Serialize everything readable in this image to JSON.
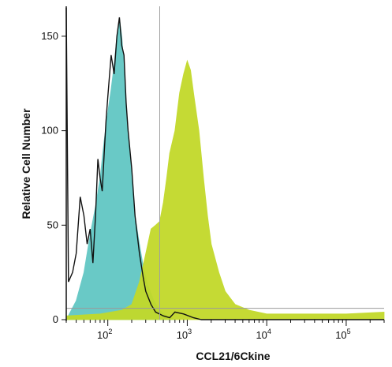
{
  "chart_data": {
    "type": "histogram",
    "xlabel": "CCL21/6Ckine",
    "ylabel": "Relative Cell Number",
    "x_scale": "log",
    "xlim": [
      30,
      300000
    ],
    "ylim": [
      0,
      165
    ],
    "y_ticks": [
      0,
      50,
      100,
      150
    ],
    "x_ticks": [
      100,
      1000,
      10000,
      100000
    ],
    "x_tick_labels": [
      {
        "base": "10",
        "exp": "2"
      },
      {
        "base": "10",
        "exp": "3"
      },
      {
        "base": "10",
        "exp": "4"
      },
      {
        "base": "10",
        "exp": "5"
      }
    ],
    "gate_x": 450,
    "grid": false,
    "legend": "none",
    "series": [
      {
        "style": "filled",
        "color": "#62c7c3",
        "points": [
          [
            30,
            0
          ],
          [
            40,
            10
          ],
          [
            50,
            25
          ],
          [
            60,
            45
          ],
          [
            70,
            60
          ],
          [
            80,
            75
          ],
          [
            90,
            95
          ],
          [
            100,
            110
          ],
          [
            110,
            122
          ],
          [
            120,
            135
          ],
          [
            130,
            150
          ],
          [
            140,
            160
          ],
          [
            150,
            150
          ],
          [
            160,
            135
          ],
          [
            170,
            115
          ],
          [
            180,
            100
          ],
          [
            200,
            75
          ],
          [
            220,
            55
          ],
          [
            250,
            40
          ],
          [
            280,
            28
          ],
          [
            320,
            18
          ],
          [
            380,
            10
          ],
          [
            450,
            5
          ],
          [
            550,
            2
          ],
          [
            700,
            0
          ]
        ]
      },
      {
        "style": "filled",
        "color": "#c2d92a",
        "points": [
          [
            30,
            2
          ],
          [
            80,
            3
          ],
          [
            150,
            5
          ],
          [
            200,
            8
          ],
          [
            250,
            20
          ],
          [
            300,
            35
          ],
          [
            350,
            48
          ],
          [
            400,
            50
          ],
          [
            450,
            52
          ],
          [
            500,
            62
          ],
          [
            550,
            75
          ],
          [
            600,
            88
          ],
          [
            700,
            100
          ],
          [
            800,
            120
          ],
          [
            900,
            130
          ],
          [
            1000,
            137
          ],
          [
            1100,
            132
          ],
          [
            1200,
            120
          ],
          [
            1400,
            100
          ],
          [
            1600,
            75
          ],
          [
            1800,
            55
          ],
          [
            2000,
            40
          ],
          [
            2500,
            25
          ],
          [
            3000,
            15
          ],
          [
            4000,
            8
          ],
          [
            6000,
            5
          ],
          [
            10000,
            3
          ],
          [
            100000,
            3
          ],
          [
            300000,
            4
          ]
        ]
      },
      {
        "style": "outline",
        "color": "#111111",
        "points": [
          [
            30,
            165
          ],
          [
            32,
            20
          ],
          [
            36,
            25
          ],
          [
            40,
            35
          ],
          [
            45,
            65
          ],
          [
            50,
            55
          ],
          [
            55,
            40
          ],
          [
            60,
            48
          ],
          [
            65,
            30
          ],
          [
            70,
            55
          ],
          [
            75,
            85
          ],
          [
            80,
            75
          ],
          [
            85,
            68
          ],
          [
            90,
            88
          ],
          [
            95,
            105
          ],
          [
            100,
            118
          ],
          [
            110,
            140
          ],
          [
            120,
            130
          ],
          [
            130,
            150
          ],
          [
            140,
            160
          ],
          [
            150,
            145
          ],
          [
            160,
            140
          ],
          [
            170,
            115
          ],
          [
            180,
            100
          ],
          [
            200,
            80
          ],
          [
            220,
            55
          ],
          [
            250,
            35
          ],
          [
            280,
            22
          ],
          [
            300,
            15
          ],
          [
            350,
            8
          ],
          [
            400,
            4
          ],
          [
            500,
            2
          ],
          [
            600,
            1
          ],
          [
            700,
            4
          ],
          [
            900,
            3
          ],
          [
            1200,
            1
          ],
          [
            1500,
            0
          ],
          [
            300000,
            0
          ]
        ]
      },
      {
        "style": "line",
        "color": "#9a9a9a",
        "points": [
          [
            30,
            6
          ],
          [
            300000,
            6
          ]
        ]
      }
    ]
  }
}
